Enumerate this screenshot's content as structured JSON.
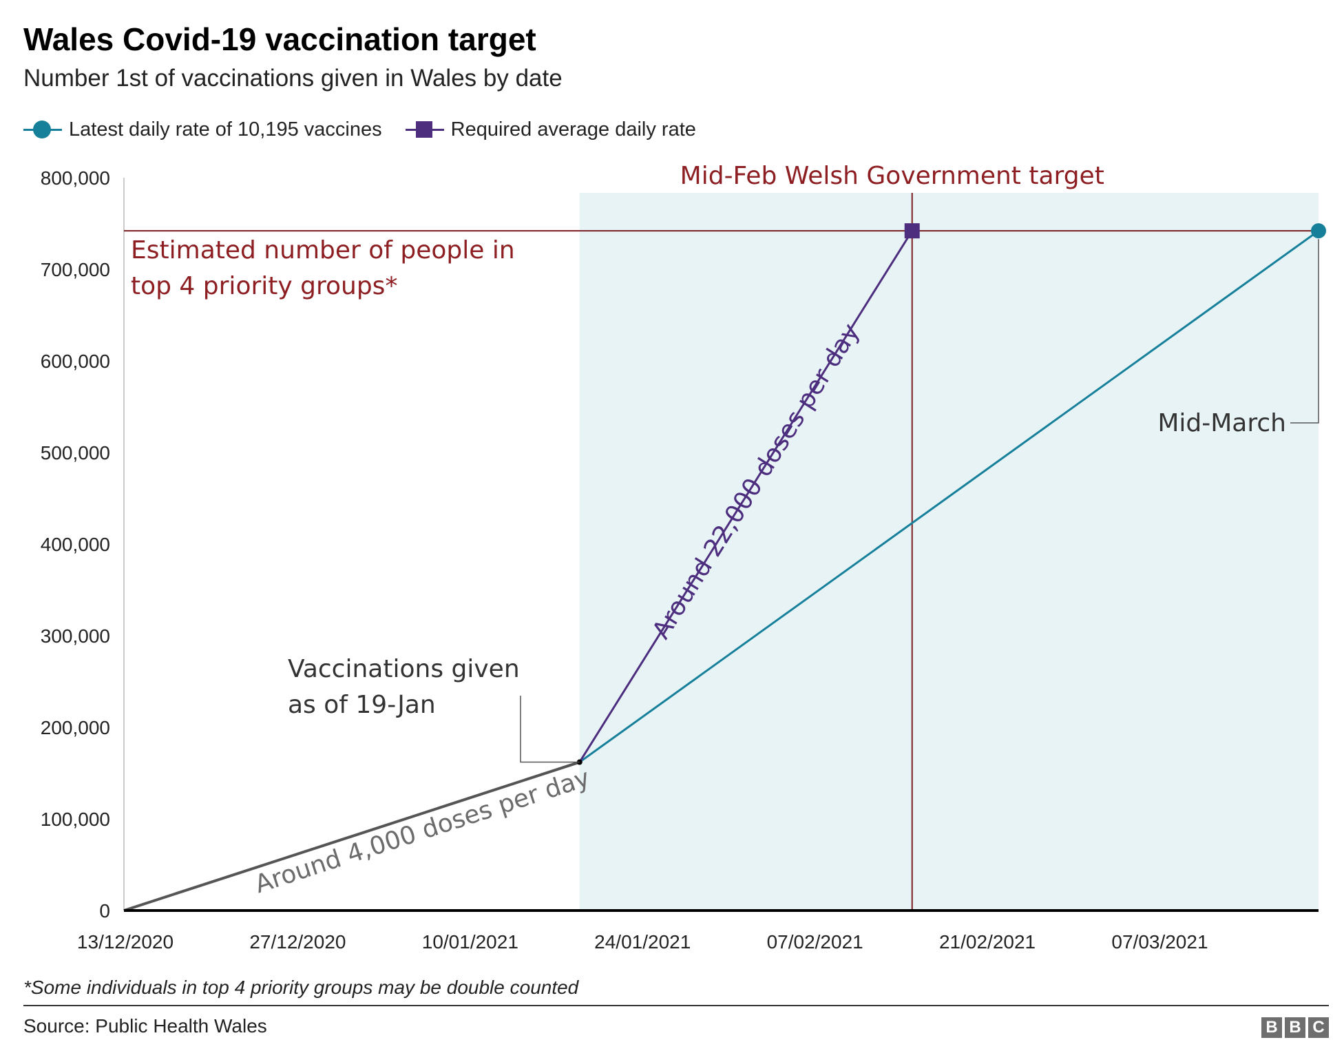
{
  "chart_data": {
    "type": "line",
    "title": "Wales Covid-19 vaccination target",
    "subtitle": "Number 1st of vaccinations given in Wales by date",
    "xlabel": "",
    "ylabel": "",
    "x_ticks": [
      "13/12/2020",
      "27/12/2020",
      "10/01/2021",
      "24/01/2021",
      "07/02/2021",
      "21/02/2021",
      "07/03/2021"
    ],
    "y_ticks": [
      "0",
      "100,000",
      "200,000",
      "300,000",
      "400,000",
      "500,000",
      "600,000",
      "700,000",
      "800,000"
    ],
    "xlim": [
      "2020-12-13",
      "2021-03-20"
    ],
    "ylim": [
      0,
      800000
    ],
    "grid": false,
    "legend": {
      "position": "top-left",
      "entries": [
        {
          "label": "Latest daily rate of 10,195 vaccines",
          "color": "#16809b",
          "marker": "circle"
        },
        {
          "label": "Required average daily rate",
          "color": "#4c2d7e",
          "marker": "square"
        }
      ]
    },
    "series": [
      {
        "key": "actual",
        "color": "#555555",
        "points": [
          {
            "x": "2020-12-13",
            "y": 0
          },
          {
            "x": "2021-01-19",
            "y": 162000
          }
        ]
      },
      {
        "name": "Latest daily rate of 10,195 vaccines",
        "color": "#16809b",
        "marker": "circle",
        "points": [
          {
            "x": "2021-01-19",
            "y": 162000
          },
          {
            "x": "2021-03-20",
            "y": 742000
          }
        ]
      },
      {
        "name": "Required average daily rate",
        "color": "#4c2d7e",
        "marker": "square",
        "points": [
          {
            "x": "2021-01-19",
            "y": 162000
          },
          {
            "x": "2021-02-15",
            "y": 742000
          }
        ]
      }
    ],
    "shaded_region": {
      "from": "2021-01-19",
      "to": "2021-03-20",
      "color": "#e8f3f6"
    },
    "reference_lines": [
      {
        "orientation": "horizontal",
        "y": 742000,
        "color": "#7a1c1f"
      },
      {
        "orientation": "vertical",
        "x": "2021-02-15",
        "color": "#7a1c1f"
      }
    ],
    "annotations": {
      "target_line": "Estimated number of people in top 4 priority groups*",
      "target_line_lines": [
        "Estimated number of people in",
        "top 4 priority groups*"
      ],
      "target_date": "Mid-Feb Welsh Government target",
      "vaccinations_given_lines": [
        "Vaccinations given",
        "as of 19-Jan"
      ],
      "required_rate": "Around 22,000 doses per day",
      "actual_rate": "Around 4,000 doses per day",
      "end_date": "Mid-March"
    }
  },
  "footnote": "*Some individuals in top 4 priority groups may be double counted",
  "source": "Source: Public Health Wales",
  "logo": [
    "B",
    "B",
    "C"
  ]
}
